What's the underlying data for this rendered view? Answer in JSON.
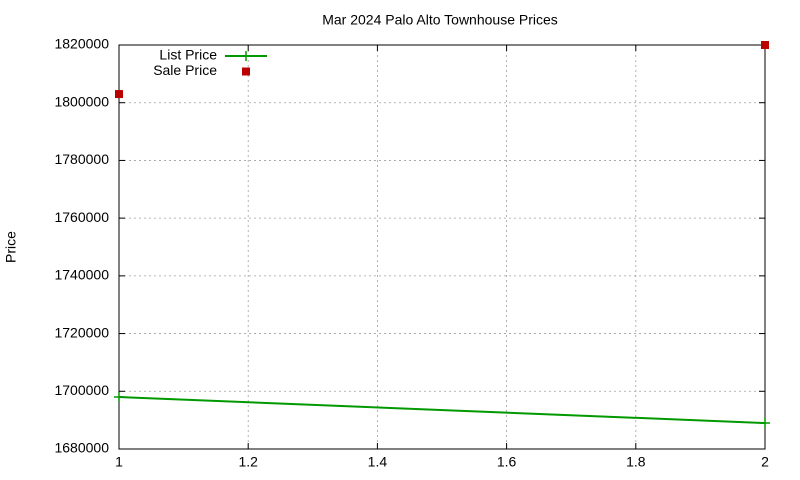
{
  "chart_data": {
    "type": "line",
    "title": "Mar 2024 Palo Alto Townhouse Prices",
    "ylabel": "Price",
    "x": [
      1,
      2
    ],
    "series": [
      {
        "name": "List Price",
        "color": "#009900",
        "marker": "plus",
        "line": true,
        "values": [
          1698000,
          1689000
        ]
      },
      {
        "name": "Sale Price",
        "color": "#bb0000",
        "marker": "square",
        "line": false,
        "values": [
          1803000,
          1820000
        ]
      }
    ],
    "xlim": [
      1,
      2
    ],
    "xticks": [
      1,
      1.2,
      1.4,
      1.6,
      1.8,
      2
    ],
    "ylim": [
      1680000,
      1820000
    ],
    "yticks": [
      1680000,
      1700000,
      1720000,
      1740000,
      1760000,
      1780000,
      1800000,
      1820000
    ],
    "grid": true,
    "legend": "top-left"
  }
}
